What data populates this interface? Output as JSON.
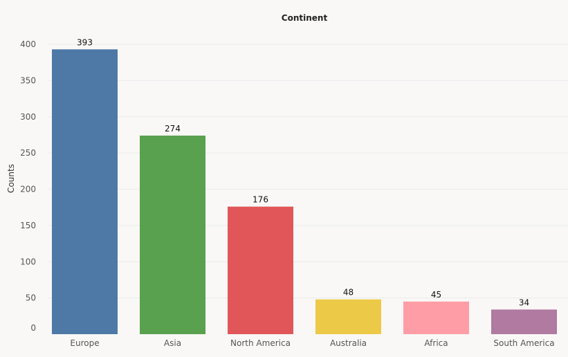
{
  "chart_data": {
    "type": "bar",
    "title": "Continent",
    "xlabel": "",
    "ylabel": "Counts",
    "categories": [
      "Europe",
      "Asia",
      "North America",
      "Australia",
      "Africa",
      "South America"
    ],
    "values": [
      393,
      274,
      176,
      48,
      45,
      34
    ],
    "colors": [
      "#4e79a7",
      "#59a14f",
      "#e15759",
      "#edc948",
      "#ff9da7",
      "#b07aa1"
    ],
    "ylim": [
      0,
      400
    ],
    "yticks": [
      0,
      50,
      100,
      150,
      200,
      250,
      300,
      350,
      400
    ],
    "grid": true,
    "legend": "none"
  }
}
